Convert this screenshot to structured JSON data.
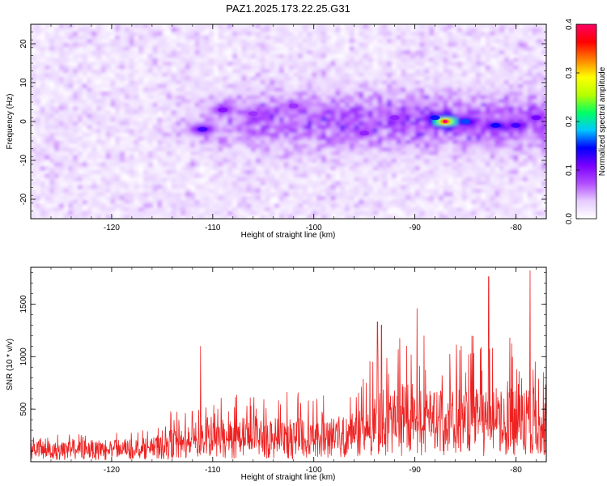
{
  "figure": {
    "title": "PAZ1.2025.173.22.25.G31"
  },
  "chart_data": [
    {
      "type": "heatmap",
      "name": "spectrogram",
      "xlabel": "Height of straight line (km)",
      "ylabel": "Frequency (Hz)",
      "xlim": [
        -128,
        -77
      ],
      "ylim": [
        -25,
        25
      ],
      "x_ticks": [
        -120,
        -110,
        -100,
        -90,
        -80
      ],
      "y_ticks": [
        -20,
        -10,
        0,
        10,
        20
      ],
      "grid": false,
      "colorbar": {
        "label": "Normalized spectral amplitude",
        "range": [
          0.0,
          0.4
        ],
        "ticks": [
          "0.0",
          "0.1",
          "0.2",
          "0.3",
          "0.4"
        ],
        "colormap": [
          "#ffffff",
          "#e6ccff",
          "#b24dff",
          "#7a00ff",
          "#0000ff",
          "#00c8ff",
          "#00ff64",
          "#b4ff00",
          "#ffff00",
          "#ff8000",
          "#ff0000",
          "#ff0064"
        ]
      },
      "features": {
        "background_band": {
          "freq_range": [
            -25,
            25
          ],
          "typical_amplitude": 0.03
        },
        "signal_band": {
          "height_range": [
            -115,
            -77
          ],
          "freq_center": 0,
          "freq_halfwidth": 7
        },
        "peaks": [
          {
            "x": -111,
            "y": -2,
            "amplitude": 0.16
          },
          {
            "x": -109,
            "y": 3,
            "amplitude": 0.13
          },
          {
            "x": -106,
            "y": 2,
            "amplitude": 0.11
          },
          {
            "x": -102,
            "y": 4,
            "amplitude": 0.11
          },
          {
            "x": -95,
            "y": -3,
            "amplitude": 0.12
          },
          {
            "x": -92,
            "y": 1,
            "amplitude": 0.12
          },
          {
            "x": -88,
            "y": 1,
            "amplitude": 0.18
          },
          {
            "x": -87,
            "y": 0,
            "amplitude": 0.4
          },
          {
            "x": -85,
            "y": 0,
            "amplitude": 0.2
          },
          {
            "x": -82,
            "y": -1,
            "amplitude": 0.18
          },
          {
            "x": -80,
            "y": -1,
            "amplitude": 0.16
          },
          {
            "x": -78,
            "y": 1,
            "amplitude": 0.14
          }
        ]
      }
    },
    {
      "type": "line",
      "name": "snr",
      "xlabel": "Height of straight line (km)",
      "ylabel": "SNR (10 * v/v)",
      "xlim": [
        -128,
        -77
      ],
      "ylim": [
        0,
        1850
      ],
      "x_ticks": [
        -120,
        -110,
        -100,
        -90,
        -80
      ],
      "y_ticks": [
        500,
        1000,
        1500
      ],
      "grid": false,
      "color": "#ee2222",
      "envelope": [
        {
          "x": -128,
          "baseline": 140,
          "peak": 260
        },
        {
          "x": -120,
          "baseline": 150,
          "peak": 280
        },
        {
          "x": -115,
          "baseline": 170,
          "peak": 330
        },
        {
          "x": -114,
          "baseline": 230,
          "peak": 540
        },
        {
          "x": -111,
          "baseline": 280,
          "peak": 600
        },
        {
          "x": -105,
          "baseline": 300,
          "peak": 720
        },
        {
          "x": -100,
          "baseline": 280,
          "peak": 650
        },
        {
          "x": -96,
          "baseline": 330,
          "peak": 700
        },
        {
          "x": -94,
          "baseline": 450,
          "peak": 1050
        },
        {
          "x": -90,
          "baseline": 580,
          "peak": 1300
        },
        {
          "x": -85,
          "baseline": 500,
          "peak": 1200
        },
        {
          "x": -80,
          "baseline": 520,
          "peak": 1250
        },
        {
          "x": -77,
          "baseline": 500,
          "peak": 1100
        }
      ],
      "spikes": [
        {
          "x": -111.2,
          "y": 1100
        },
        {
          "x": -93.7,
          "y": 1330
        },
        {
          "x": -93.3,
          "y": 1300
        },
        {
          "x": -89.8,
          "y": 1460
        },
        {
          "x": -82.7,
          "y": 1760
        },
        {
          "x": -78.6,
          "y": 1820
        },
        {
          "x": -80.6,
          "y": 1180
        }
      ]
    }
  ]
}
